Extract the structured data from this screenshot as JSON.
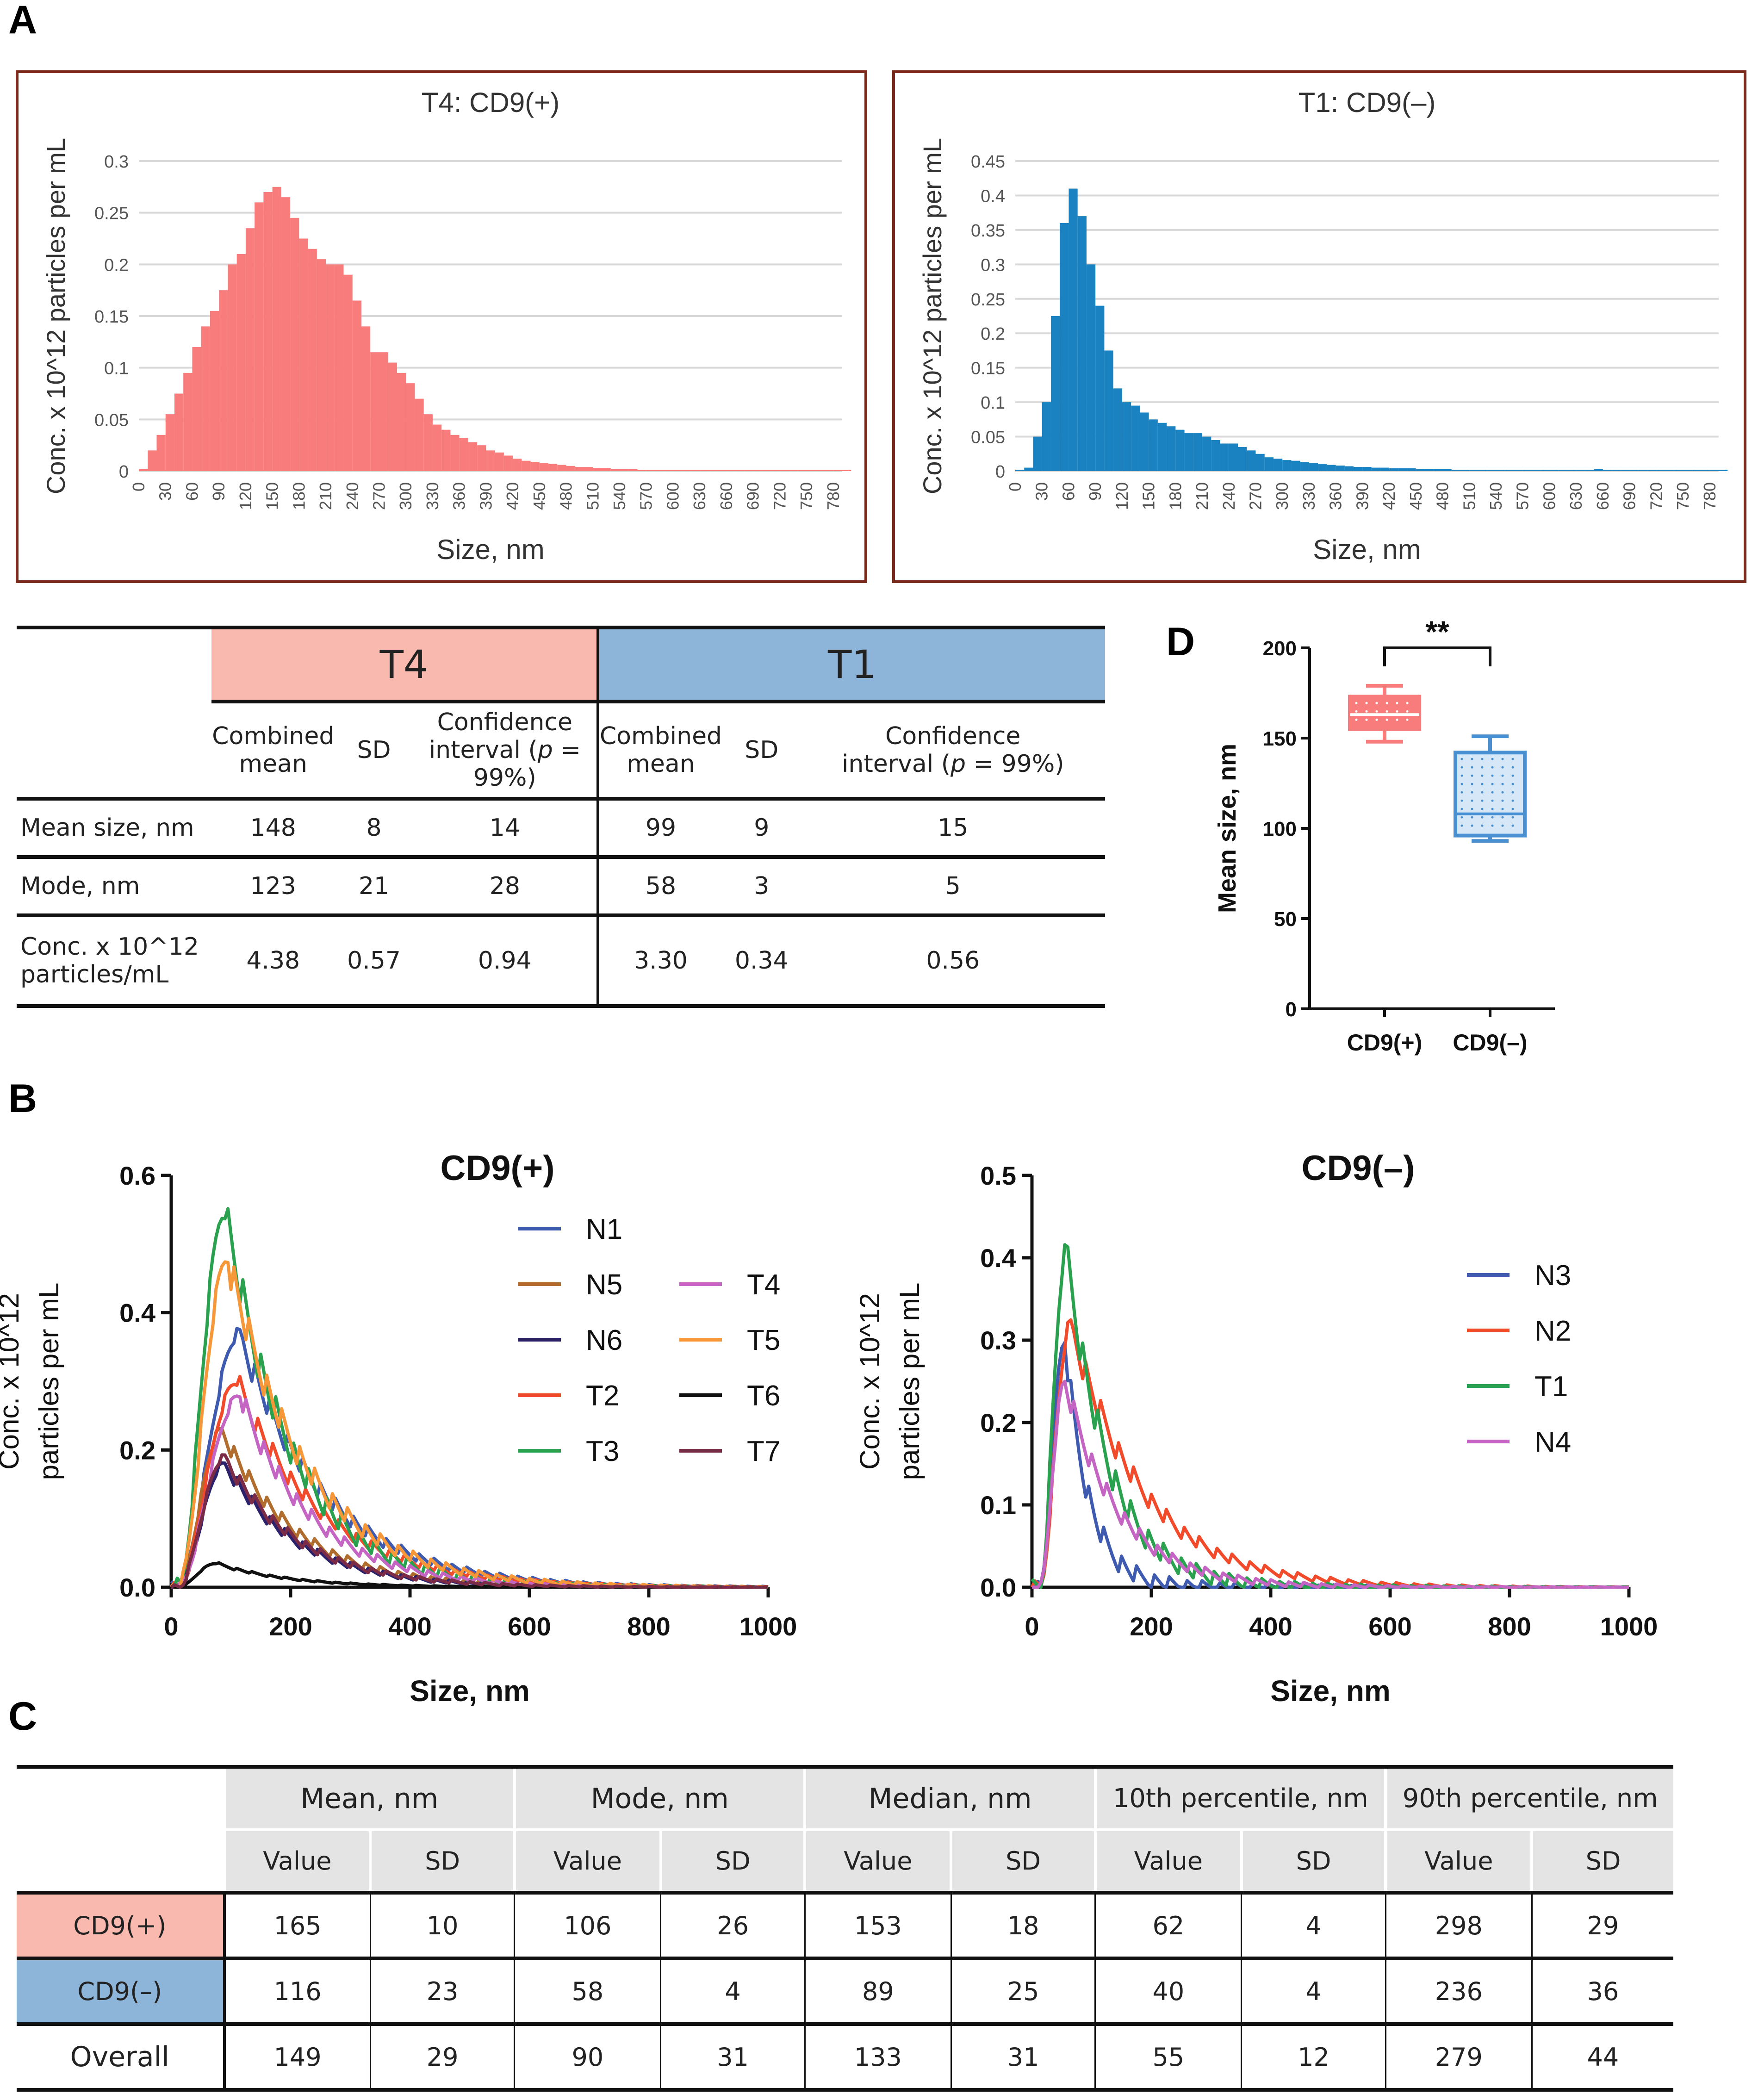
{
  "panel_labels": {
    "a": "A",
    "b": "B",
    "c": "C",
    "d": "D"
  },
  "colors": {
    "t4": "#f97c7c",
    "t1": "#1a82c0",
    "t4_header": "#f9b9af",
    "t1_header": "#8db4d9",
    "cd9pos_row": "#f9b9af",
    "cd9neg_row": "#8db4d9",
    "gray_header": "#e4e4e4"
  },
  "chart_data": [
    {
      "id": "A-left",
      "type": "bar",
      "title": "T4: CD9(+)",
      "xlabel": "Size, nm",
      "ylabel": "Conc. x 10^12 particles per mL",
      "ylim": [
        0,
        0.3
      ],
      "yticks": [
        "0",
        "0.05",
        "0.1",
        "0.15",
        "0.2",
        "0.25",
        "0.3"
      ],
      "xticks": [
        "0",
        "30",
        "60",
        "90",
        "120",
        "150",
        "180",
        "210",
        "240",
        "270",
        "300",
        "330",
        "360",
        "390",
        "420",
        "450",
        "480",
        "510",
        "540",
        "570",
        "600",
        "630",
        "660",
        "690",
        "720",
        "750",
        "780"
      ],
      "bin_width": 10,
      "values": [
        0.002,
        0.02,
        0.035,
        0.055,
        0.075,
        0.095,
        0.12,
        0.14,
        0.155,
        0.175,
        0.2,
        0.21,
        0.235,
        0.26,
        0.27,
        0.275,
        0.265,
        0.245,
        0.225,
        0.215,
        0.205,
        0.2,
        0.2,
        0.19,
        0.165,
        0.14,
        0.115,
        0.115,
        0.105,
        0.095,
        0.085,
        0.07,
        0.055,
        0.045,
        0.04,
        0.035,
        0.032,
        0.028,
        0.025,
        0.02,
        0.018,
        0.015,
        0.012,
        0.01,
        0.009,
        0.008,
        0.007,
        0.006,
        0.005,
        0.004,
        0.004,
        0.003,
        0.003,
        0.002,
        0.002,
        0.002,
        0.001,
        0.001,
        0.001,
        0.001,
        0.001,
        0.001,
        0.001,
        0.001,
        0.001,
        0.001,
        0.001,
        0.001,
        0.001,
        0.001,
        0.001,
        0.001,
        0.001,
        0.001,
        0.001,
        0.001,
        0.001,
        0.001,
        0.001,
        0.001
      ]
    },
    {
      "id": "A-right",
      "type": "bar",
      "title": "T1: CD9(–)",
      "xlabel": "Size, nm",
      "ylabel": "Conc. x 10^12 particles per mL",
      "ylim": [
        0,
        0.45
      ],
      "yticks": [
        "0",
        "0.05",
        "0.1",
        "0.15",
        "0.2",
        "0.25",
        "0.3",
        "0.35",
        "0.4",
        "0.45"
      ],
      "xticks": [
        "0",
        "30",
        "60",
        "90",
        "120",
        "150",
        "180",
        "210",
        "240",
        "270",
        "300",
        "330",
        "360",
        "390",
        "420",
        "450",
        "480",
        "510",
        "540",
        "570",
        "600",
        "630",
        "660",
        "690",
        "720",
        "750",
        "780"
      ],
      "bin_width": 10,
      "values": [
        0.002,
        0.005,
        0.05,
        0.1,
        0.225,
        0.36,
        0.41,
        0.37,
        0.3,
        0.24,
        0.175,
        0.12,
        0.1,
        0.095,
        0.085,
        0.075,
        0.07,
        0.065,
        0.06,
        0.055,
        0.055,
        0.05,
        0.045,
        0.04,
        0.04,
        0.035,
        0.03,
        0.025,
        0.02,
        0.018,
        0.016,
        0.015,
        0.013,
        0.012,
        0.01,
        0.009,
        0.008,
        0.007,
        0.006,
        0.006,
        0.005,
        0.005,
        0.004,
        0.004,
        0.004,
        0.003,
        0.003,
        0.003,
        0.003,
        0.002,
        0.002,
        0.002,
        0.002,
        0.002,
        0.002,
        0.002,
        0.002,
        0.002,
        0.002,
        0.002,
        0.002,
        0.002,
        0.002,
        0.002,
        0.002,
        0.003,
        0.002,
        0.002,
        0.002,
        0.002,
        0.002,
        0.002,
        0.002,
        0.002,
        0.002,
        0.002,
        0.002,
        0.002,
        0.002,
        0.002
      ]
    },
    {
      "id": "B-left",
      "type": "line",
      "title": "CD9(+)",
      "xlabel": "Size, nm",
      "ylabel": "Conc. x 10^12 particles per mL",
      "ylabel_lines": [
        "Conc. x 10^12",
        "particles per mL"
      ],
      "xlim": [
        0,
        1000
      ],
      "ylim": [
        0,
        0.6
      ],
      "xticks": [
        "0",
        "200",
        "400",
        "600",
        "800",
        "1000"
      ],
      "yticks": [
        "0.0",
        "0.2",
        "0.4",
        "0.6"
      ],
      "series": [
        {
          "name": "N1",
          "color": "#3f5bb0",
          "peak": 0.37,
          "mode": 115,
          "width": 60,
          "tail": 140
        },
        {
          "name": "N5",
          "color": "#b06d2e",
          "peak": 0.23,
          "mode": 85,
          "width": 45,
          "tail": 120
        },
        {
          "name": "N6",
          "color": "#2c226b",
          "peak": 0.18,
          "mode": 90,
          "width": 45,
          "tail": 120
        },
        {
          "name": "T2",
          "color": "#f24b2c",
          "peak": 0.3,
          "mode": 110,
          "width": 55,
          "tail": 140
        },
        {
          "name": "T3",
          "color": "#2aa14e",
          "peak": 0.55,
          "mode": 90,
          "width": 40,
          "tail": 110
        },
        {
          "name": "T4",
          "color": "#c465c4",
          "peak": 0.28,
          "mode": 115,
          "width": 55,
          "tail": 120
        },
        {
          "name": "T5",
          "color": "#f6983a",
          "peak": 0.48,
          "mode": 95,
          "width": 45,
          "tail": 130
        },
        {
          "name": "T6",
          "color": "#111111",
          "peak": 0.035,
          "mode": 75,
          "width": 40,
          "tail": 120
        },
        {
          "name": "T7",
          "color": "#7c2b47",
          "peak": 0.19,
          "mode": 90,
          "width": 45,
          "tail": 120
        }
      ]
    },
    {
      "id": "B-right",
      "type": "line",
      "title": "CD9(–)",
      "xlabel": "Size, nm",
      "ylabel": "Conc. x 10^12 particles per mL",
      "ylabel_lines": [
        "Conc. x 10^12",
        "particles per mL"
      ],
      "xlim": [
        0,
        1000
      ],
      "ylim": [
        0,
        0.5
      ],
      "xticks": [
        "0",
        "200",
        "400",
        "600",
        "800",
        "1000"
      ],
      "yticks": [
        "0.0",
        "0.1",
        "0.2",
        "0.3",
        "0.4",
        "0.5"
      ],
      "series": [
        {
          "name": "N3",
          "color": "#3f5bb0",
          "peak": 0.3,
          "mode": 55,
          "width": 20,
          "tail": 40
        },
        {
          "name": "N2",
          "color": "#f24b2c",
          "peak": 0.32,
          "mode": 65,
          "width": 25,
          "tail": 120
        },
        {
          "name": "T1",
          "color": "#2aa14e",
          "peak": 0.41,
          "mode": 58,
          "width": 20,
          "tail": 70
        },
        {
          "name": "N4",
          "color": "#c465c4",
          "peak": 0.25,
          "mode": 55,
          "width": 20,
          "tail": 90
        }
      ]
    },
    {
      "id": "D",
      "type": "box",
      "ylabel": "Mean size, nm",
      "ylim": [
        0,
        200
      ],
      "yticks": [
        "0",
        "50",
        "100",
        "150",
        "200"
      ],
      "categories": [
        "CD9(+)",
        "CD9(–)"
      ],
      "significance": "**",
      "boxes": [
        {
          "name": "CD9(+)",
          "min": 148,
          "q1": 155,
          "median": 163,
          "q3": 173,
          "max": 179,
          "color": "#f97c7c"
        },
        {
          "name": "CD9(–)",
          "min": 93,
          "q1": 96,
          "median": 108,
          "q3": 142,
          "max": 151,
          "color": "#4a90d0"
        }
      ]
    }
  ],
  "tableA": {
    "t4_label": "T4",
    "t1_label": "T1",
    "sub": [
      "Combined\nmean",
      "SD",
      "Confidence\ninterval (p = 99%)",
      "Combined\nmean",
      "SD",
      "Confidence\ninterval (p = 99%)"
    ],
    "sub_ci_prefix": "interval (",
    "sub_ci_p": "p",
    "sub_ci_suffix": " = 99%)",
    "sub_ci_top": "Confidence",
    "sub_cm_top": "Combined",
    "sub_cm_bottom": "mean",
    "sub_sd": "SD",
    "rows": [
      {
        "label": "Mean size, nm",
        "v": [
          "148",
          "8",
          "14",
          "99",
          "9",
          "15"
        ]
      },
      {
        "label": "Mode, nm",
        "v": [
          "123",
          "21",
          "28",
          "58",
          "3",
          "5"
        ]
      },
      {
        "label1": "Conc. x 10^12",
        "label2": "particles/mL",
        "v": [
          "4.38",
          "0.57",
          "0.94",
          "3.30",
          "0.34",
          "0.56"
        ]
      }
    ]
  },
  "tableC": {
    "groups": [
      "Mean, nm",
      "Mode, nm",
      "Median, nm",
      "10th percentile, nm",
      "90th percentile, nm"
    ],
    "value_label": "Value",
    "sd_label": "SD",
    "rows": [
      {
        "label": "CD9(+)",
        "v": [
          "165",
          "10",
          "106",
          "26",
          "153",
          "18",
          "62",
          "4",
          "298",
          "29"
        ]
      },
      {
        "label": "CD9(–)",
        "v": [
          "116",
          "23",
          "58",
          "4",
          "89",
          "25",
          "40",
          "4",
          "236",
          "36"
        ]
      },
      {
        "label": "Overall",
        "v": [
          "149",
          "29",
          "90",
          "31",
          "133",
          "31",
          "55",
          "12",
          "279",
          "44"
        ]
      }
    ]
  }
}
